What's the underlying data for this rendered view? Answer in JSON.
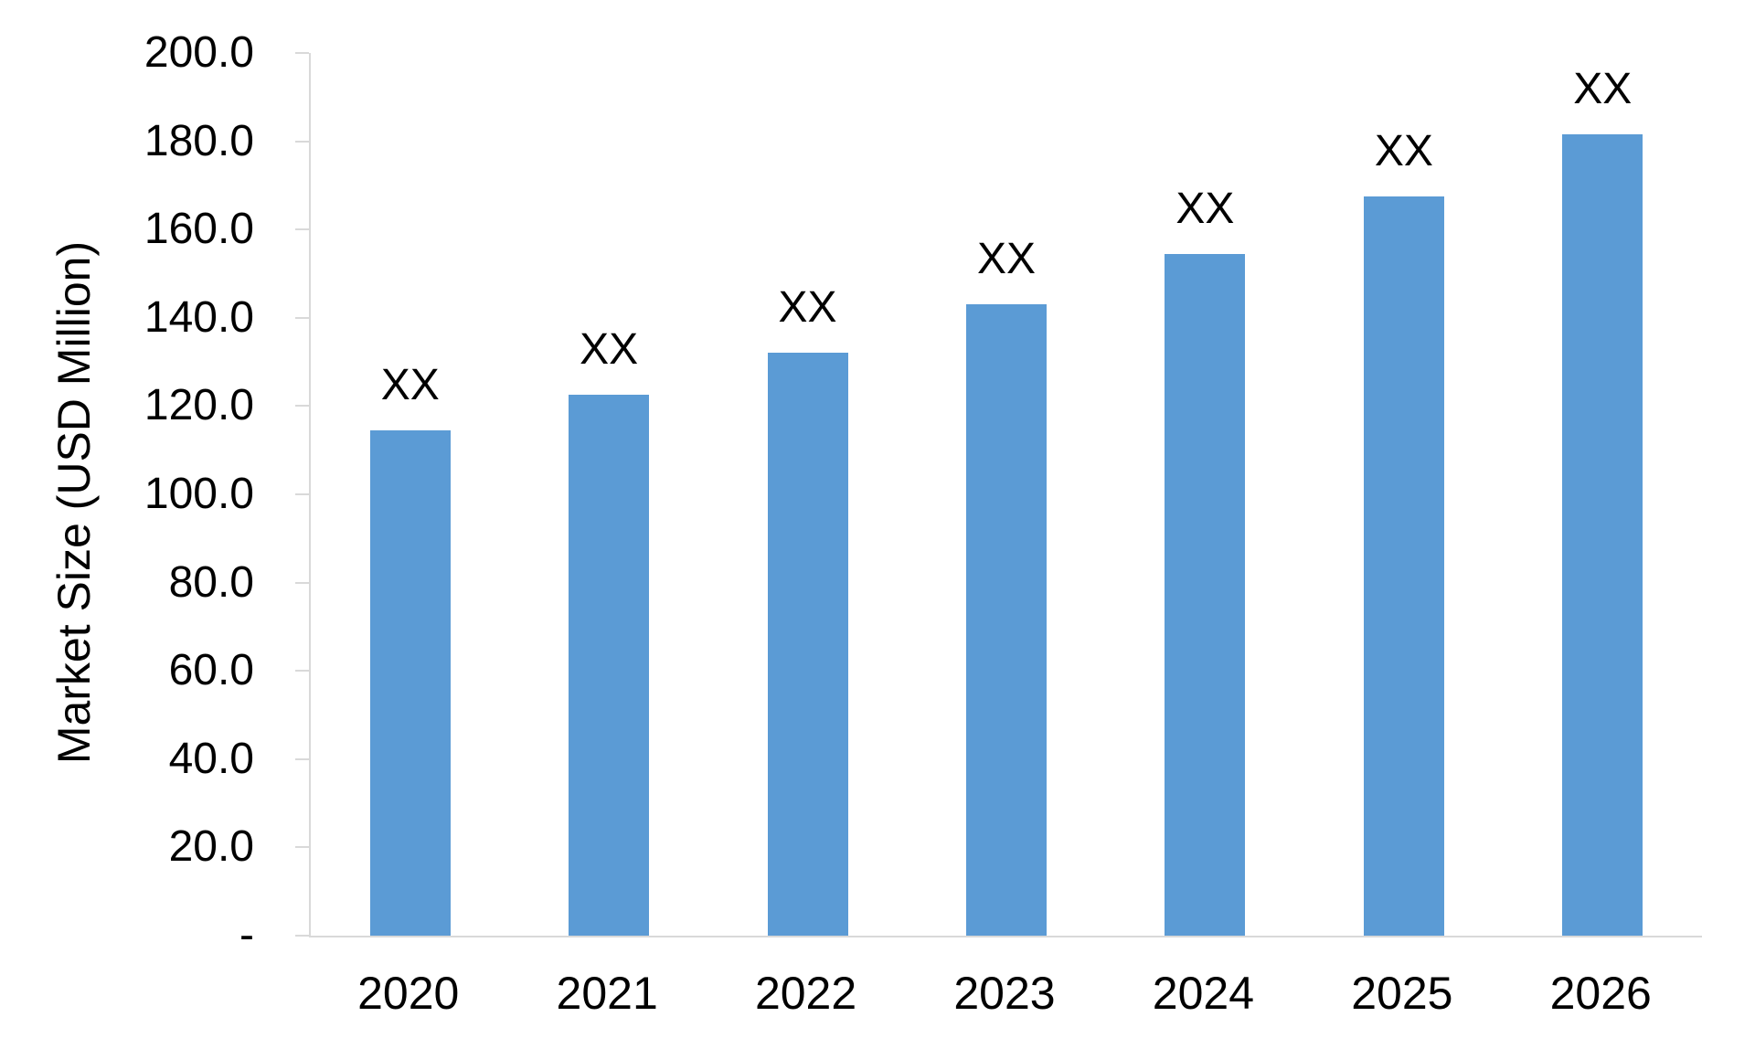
{
  "chart_data": {
    "type": "bar",
    "title": "",
    "xlabel": "",
    "ylabel": "Market Size (USD Million)",
    "categories": [
      "2020",
      "2021",
      "2022",
      "2023",
      "2024",
      "2025",
      "2026"
    ],
    "series": [
      {
        "name": "Market Size",
        "values": [
          114.5,
          122.5,
          132.0,
          143.0,
          154.5,
          167.5,
          181.5
        ],
        "data_labels": [
          "XX",
          "XX",
          "XX",
          "XX",
          "XX",
          "XX",
          "XX"
        ]
      }
    ],
    "ylim": [
      0,
      200
    ],
    "y_tick_interval": 20,
    "y_tick_labels_top_to_bottom": [
      "200.0",
      "180.0",
      "160.0",
      "140.0",
      "120.0",
      "100.0",
      "80.0",
      "60.0",
      "40.0",
      "20.0",
      "-"
    ],
    "grid": false,
    "legend_position": "none",
    "colors": {
      "bar_fill": "#5B9BD5",
      "axis_line": "#D9D9D9",
      "text": "#000000",
      "background": "#FFFFFF"
    }
  }
}
